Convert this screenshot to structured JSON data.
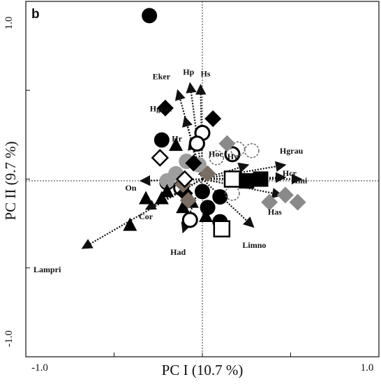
{
  "chart_data": {
    "type": "scatter",
    "panel_label": "b",
    "xlabel": "PC I (10.7 %)",
    "ylabel": "PC II (9.7 %)",
    "xlim": [
      -1.0,
      1.0
    ],
    "ylim": [
      -1.0,
      1.0
    ],
    "x_tick_labels": [
      "-1.0",
      "1.0"
    ],
    "y_tick_labels": [
      "1.0",
      "-1.0"
    ],
    "arrows": [
      {
        "label": "Hp",
        "x": -0.07,
        "y": 0.54
      },
      {
        "label": "Hs",
        "x": -0.01,
        "y": 0.53
      },
      {
        "label": "Eker",
        "x": -0.14,
        "y": 0.5
      },
      {
        "label": "Hgrac",
        "x": -0.1,
        "y": 0.35
      },
      {
        "label": "Hr",
        "x": -0.07,
        "y": 0.22
      },
      {
        "label": "Hoc",
        "x": 0.02,
        "y": 0.07
      },
      {
        "label": "Hv",
        "x": 0.26,
        "y": 0.08
      },
      {
        "label": "Hgrau",
        "x": 0.47,
        "y": 0.08
      },
      {
        "label": "Hcr",
        "x": 0.47,
        "y": 0.01
      },
      {
        "label": "Hmi",
        "x": 0.56,
        "y": 0.0
      },
      {
        "label": "Has",
        "x": 0.45,
        "y": -0.09
      },
      {
        "label": "Limno",
        "x": 0.29,
        "y": -0.27
      },
      {
        "label": "Had",
        "x": -0.11,
        "y": -0.3
      },
      {
        "label": "Cor",
        "x": -0.32,
        "y": -0.17
      },
      {
        "label": "On",
        "x": -0.35,
        "y": -0.01
      },
      {
        "label": "Lampri",
        "x": -0.68,
        "y": -0.39
      }
    ],
    "series": [
      {
        "marker": "filled-circle",
        "color": "#000000",
        "points": [
          [
            -0.3,
            0.92
          ],
          [
            -0.23,
            0.22
          ],
          [
            0.1,
            -0.1
          ],
          [
            0.1,
            -0.24
          ],
          [
            -0.2,
            -0.02
          ],
          [
            0.0,
            -0.07
          ],
          [
            0.03,
            -0.16
          ]
        ]
      },
      {
        "marker": "open-circle",
        "color": "#000000",
        "points": [
          [
            0.0,
            0.26
          ],
          [
            -0.03,
            0.2
          ],
          [
            0.17,
            0.14
          ],
          [
            -0.12,
            -0.05
          ],
          [
            -0.07,
            -0.23
          ]
        ]
      },
      {
        "marker": "dashed-circle",
        "color": "#666666",
        "points": [
          [
            0.08,
            0.12
          ],
          [
            0.2,
            0.17
          ],
          [
            0.28,
            0.16
          ],
          [
            0.17,
            -0.08
          ]
        ]
      },
      {
        "marker": "grey-circle",
        "color": "#9e9e9e",
        "points": [
          [
            -0.15,
            0.03
          ],
          [
            -0.2,
            -0.01
          ],
          [
            -0.02,
            0.08
          ],
          [
            -0.09,
            0.1
          ]
        ]
      },
      {
        "marker": "filled-triangle",
        "color": "#000000",
        "points": [
          [
            -0.32,
            -0.11
          ],
          [
            -0.41,
            -0.26
          ],
          [
            -0.23,
            -0.11
          ],
          [
            -0.2,
            -0.07
          ],
          [
            -0.06,
            -0.13
          ],
          [
            -0.15,
            0.19
          ],
          [
            -0.11,
            -0.16
          ],
          [
            0.02,
            -0.21
          ]
        ]
      },
      {
        "marker": "filled-diamond",
        "color": "#000000",
        "points": [
          [
            -0.21,
            0.4
          ],
          [
            0.06,
            0.34
          ],
          [
            -0.05,
            0.09
          ],
          [
            -0.1,
            -0.08
          ]
        ]
      },
      {
        "marker": "grey-diamond",
        "color": "#8a8a8a",
        "points": [
          [
            0.14,
            0.2
          ],
          [
            0.38,
            -0.13
          ],
          [
            0.47,
            -0.09
          ],
          [
            0.54,
            -0.13
          ]
        ]
      },
      {
        "marker": "brown-diamond",
        "color": "#7a6d63",
        "points": [
          [
            -0.11,
            -0.03
          ],
          [
            -0.08,
            -0.12
          ],
          [
            0.03,
            0.03
          ]
        ]
      },
      {
        "marker": "open-diamond",
        "color": "#000000",
        "points": [
          [
            -0.24,
            0.12
          ],
          [
            -0.1,
            0.0
          ]
        ]
      },
      {
        "marker": "open-square",
        "color": "#000000",
        "points": [
          [
            0.17,
            0.0
          ],
          [
            0.11,
            -0.28
          ]
        ]
      },
      {
        "marker": "filled-square",
        "color": "#000000",
        "points": [
          [
            0.25,
            -0.01
          ],
          [
            0.33,
            0.0
          ]
        ]
      }
    ]
  }
}
